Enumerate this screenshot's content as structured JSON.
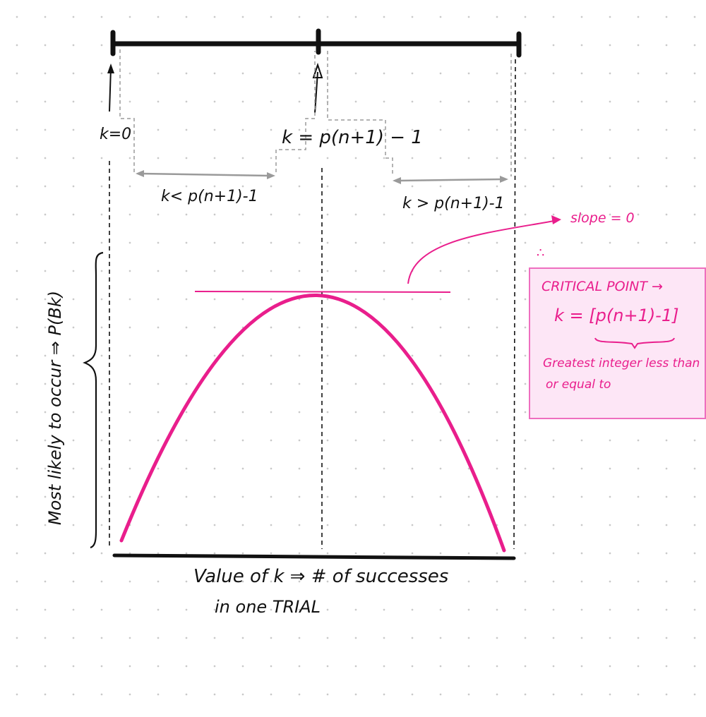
{
  "labels": {
    "k_zero": "k=0",
    "k_critical": "k = p(n+1) − 1",
    "k_less": "k< p(n+1)-1",
    "k_greater": "k > p(n+1)-1",
    "slope": "slope = 0",
    "therefore": "∴",
    "y_axis": "Most likely to occur ⇒ P(Bk)",
    "x_axis_line1": "Value of k ⇒ # of successes",
    "x_axis_line2": "in one TRIAL"
  },
  "critical_box": {
    "title": "CRITICAL POINT →",
    "formula": "k = [p(n+1)-1]",
    "note_line1": "Greatest integer less than",
    "note_line2": "or equal to"
  },
  "colors": {
    "ink": "#111111",
    "accent": "#e91e8c",
    "box_fill": "#fde6f6",
    "box_border": "#ee6fbf",
    "guide": "#9a9a9a"
  }
}
